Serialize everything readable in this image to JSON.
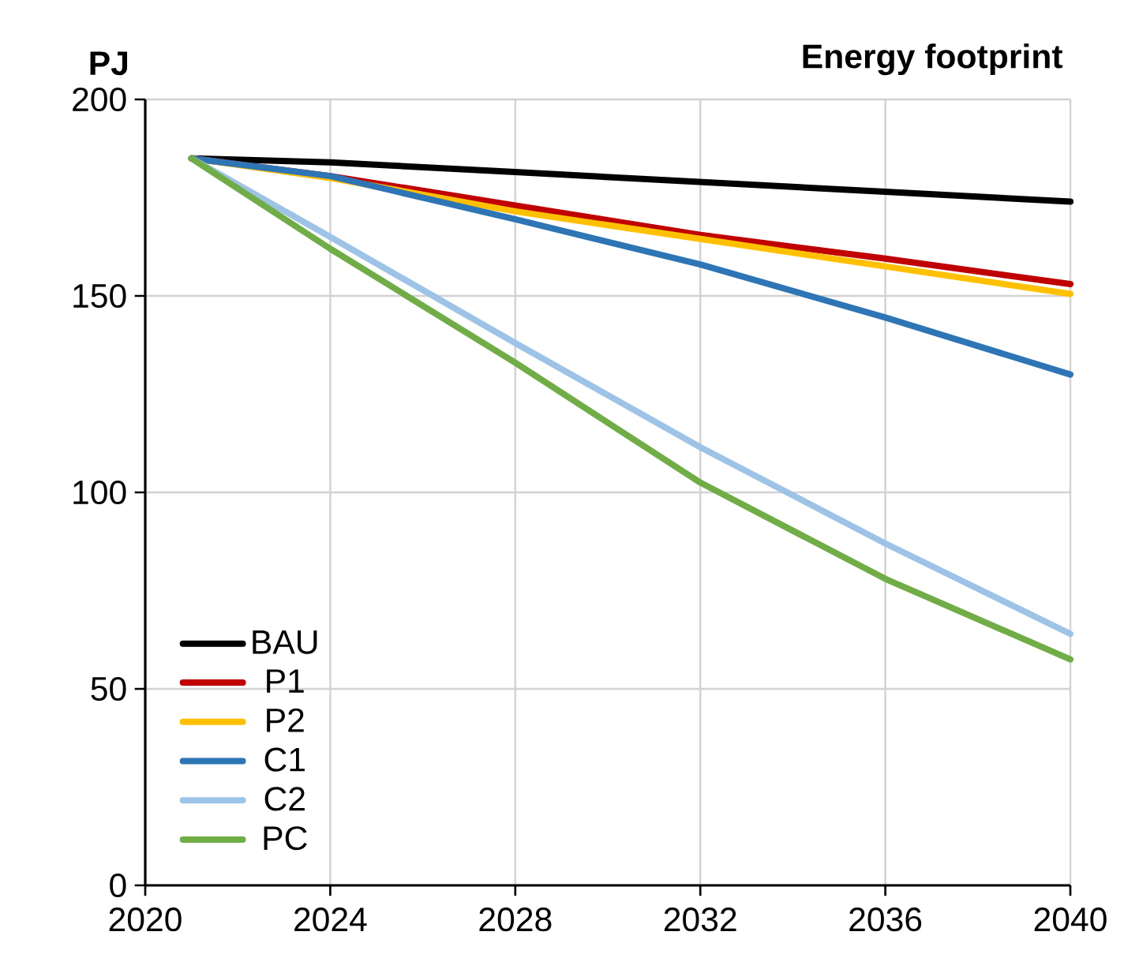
{
  "chart_data": {
    "type": "line",
    "title": "Energy footprint",
    "ylabel": "PJ",
    "x": [
      2021,
      2024,
      2028,
      2032,
      2036,
      2040
    ],
    "series": [
      {
        "name": "BAU",
        "color": "#000000",
        "values": [
          185,
          184,
          181.5,
          179,
          176.5,
          174
        ]
      },
      {
        "name": "P1",
        "color": "#c00000",
        "values": [
          185,
          180.5,
          173,
          165.5,
          159.5,
          153
        ]
      },
      {
        "name": "P2",
        "color": "#ffc000",
        "values": [
          185,
          180,
          171.5,
          164.5,
          157.5,
          150.5
        ]
      },
      {
        "name": "C1",
        "color": "#2e75b6",
        "values": [
          185,
          180.5,
          169.5,
          158,
          144.5,
          130
        ]
      },
      {
        "name": "C2",
        "color": "#9dc3e6",
        "values": [
          185,
          165,
          138,
          111.5,
          87,
          64
        ]
      },
      {
        "name": "PC",
        "color": "#70ad47",
        "values": [
          185,
          162,
          133,
          102.5,
          78,
          57.5
        ]
      }
    ],
    "xlim": [
      2020,
      2040
    ],
    "ylim": [
      0,
      200
    ],
    "xticks": [
      2020,
      2024,
      2028,
      2032,
      2036,
      2040
    ],
    "yticks": [
      0,
      50,
      100,
      150,
      200
    ],
    "grid": true,
    "legend": "bottom left",
    "line_style": "solid",
    "marker": "none"
  }
}
